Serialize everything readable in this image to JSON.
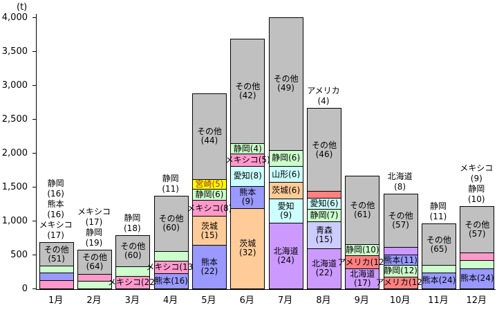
{
  "chart_data": {
    "type": "bar",
    "stacked": true,
    "title": "",
    "unit_label": "(t)",
    "xlabel": "",
    "ylabel": "(t)",
    "ylim": [
      0,
      4000
    ],
    "ytick_step": 500,
    "yticks": [
      "0",
      "500",
      "1,000",
      "1,500",
      "2,000",
      "2,500",
      "3,000",
      "3,500",
      "4,000"
    ],
    "grid": false,
    "legend": "none",
    "categories": [
      "1月",
      "2月",
      "3月",
      "4月",
      "5月",
      "6月",
      "7月",
      "8月",
      "9月",
      "10月",
      "11月",
      "12月"
    ],
    "region_colors": {
      "その他": "#c0c0c0",
      "静岡": "#ccffcc",
      "熊本": "#9999ff",
      "メキシコ": "#ff99cc",
      "宮崎": "#ffff00",
      "茨城": "#ffcc99",
      "愛知": "#ccffff",
      "山形": "#ccffff",
      "北海道": "#cc99ff",
      "青森": "#ccccff",
      "アメリカ": "#ff8080"
    },
    "months": [
      {
        "label": "1月",
        "total": 670,
        "segments": [
          {
            "region": "メキシコ",
            "key": "mexico",
            "pct": 17,
            "label": "outside"
          },
          {
            "region": "熊本",
            "key": "kumamoto",
            "pct": 16,
            "label": "outside"
          },
          {
            "region": "静岡",
            "key": "shizuoka",
            "pct": 16,
            "label": "outside"
          },
          {
            "region": "その他",
            "key": "others",
            "pct": 51,
            "label": "inside2"
          }
        ]
      },
      {
        "label": "2月",
        "total": 560,
        "segments": [
          {
            "region": "静岡",
            "key": "shizuoka",
            "pct": 19,
            "label": "outside"
          },
          {
            "region": "メキシコ",
            "key": "mexico",
            "pct": 17,
            "label": "outside"
          },
          {
            "region": "その他",
            "key": "others",
            "pct": 64,
            "label": "inside2"
          }
        ]
      },
      {
        "label": "3月",
        "total": 780,
        "segments": [
          {
            "region": "メキシコ",
            "key": "mexico",
            "pct": 22,
            "label": "inside1"
          },
          {
            "region": "静岡",
            "key": "shizuoka",
            "pct": 18,
            "label": "outside"
          },
          {
            "region": "その他",
            "key": "others",
            "pct": 60,
            "label": "inside2"
          }
        ]
      },
      {
        "label": "4月",
        "total": 1360,
        "segments": [
          {
            "region": "熊本",
            "key": "kumamoto",
            "pct": 16,
            "label": "inside1"
          },
          {
            "region": "メキシコ",
            "key": "mexico",
            "pct": 13,
            "label": "inside1"
          },
          {
            "region": "静岡",
            "key": "shizuoka",
            "pct": 11,
            "label": "outside"
          },
          {
            "region": "その他",
            "key": "others",
            "pct": 60,
            "label": "inside2"
          }
        ]
      },
      {
        "label": "5月",
        "total": 2870,
        "segments": [
          {
            "region": "熊本",
            "key": "kumamoto",
            "pct": 22,
            "label": "inside2"
          },
          {
            "region": "茨城",
            "key": "ibaraki",
            "pct": 15,
            "label": "inside2"
          },
          {
            "region": "メキシコ",
            "key": "mexico",
            "pct": 8,
            "label": "inside1"
          },
          {
            "region": "静岡",
            "key": "shizuoka",
            "pct": 6,
            "label": "inside1"
          },
          {
            "region": "宮崎",
            "key": "miyazaki",
            "pct": 5,
            "label": "inside1",
            "text_color": "#993300"
          },
          {
            "region": "その他",
            "key": "others",
            "pct": 44,
            "label": "inside2"
          }
        ]
      },
      {
        "label": "6月",
        "total": 3670,
        "segments": [
          {
            "region": "茨城",
            "key": "ibaraki",
            "pct": 32,
            "label": "inside2"
          },
          {
            "region": "熊本",
            "key": "kumamoto",
            "pct": 9,
            "label": "inside2"
          },
          {
            "region": "愛知",
            "key": "aichi",
            "pct": 8,
            "label": "inside1"
          },
          {
            "region": "メキシコ",
            "key": "mexico",
            "pct": 5,
            "label": "inside1"
          },
          {
            "region": "静岡",
            "key": "shizuoka",
            "pct": 4,
            "label": "inside1"
          },
          {
            "region": "その他",
            "key": "others",
            "pct": 42,
            "label": "inside2"
          }
        ]
      },
      {
        "label": "7月",
        "total": 3990,
        "segments": [
          {
            "region": "北海道",
            "key": "hokkaido",
            "pct": 24,
            "label": "inside2"
          },
          {
            "region": "愛知",
            "key": "aichi",
            "pct": 9,
            "label": "inside2"
          },
          {
            "region": "茨城",
            "key": "ibaraki",
            "pct": 6,
            "label": "inside1"
          },
          {
            "region": "山形",
            "key": "yamagata",
            "pct": 6,
            "label": "inside1"
          },
          {
            "region": "静岡",
            "key": "shizuoka",
            "pct": 6,
            "label": "inside1"
          },
          {
            "region": "その他",
            "key": "others",
            "pct": 49,
            "label": "inside2"
          }
        ]
      },
      {
        "label": "8月",
        "total": 2650,
        "segments": [
          {
            "region": "北海道",
            "key": "hokkaido",
            "pct": 22,
            "label": "inside2"
          },
          {
            "region": "青森",
            "key": "aomori",
            "pct": 15,
            "label": "inside2"
          },
          {
            "region": "静岡",
            "key": "shizuoka",
            "pct": 7,
            "label": "inside1"
          },
          {
            "region": "愛知",
            "key": "aichi",
            "pct": 6,
            "label": "inside1"
          },
          {
            "region": "アメリカ",
            "key": "america",
            "pct": 4,
            "label": "outside"
          },
          {
            "region": "その他",
            "key": "others",
            "pct": 46,
            "label": "inside2"
          }
        ]
      },
      {
        "label": "9月",
        "total": 1650,
        "segments": [
          {
            "region": "北海道",
            "key": "hokkaido",
            "pct": 17,
            "label": "inside2"
          },
          {
            "region": "アメリカ",
            "key": "america",
            "pct": 12,
            "label": "inside1"
          },
          {
            "region": "静岡",
            "key": "shizuoka",
            "pct": 10,
            "label": "inside1"
          },
          {
            "region": "その他",
            "key": "others",
            "pct": 61,
            "label": "inside2"
          }
        ]
      },
      {
        "label": "10月",
        "total": 1390,
        "segments": [
          {
            "region": "アメリカ",
            "key": "america",
            "pct": 12,
            "label": "inside1"
          },
          {
            "region": "静岡",
            "key": "shizuoka",
            "pct": 12,
            "label": "inside1"
          },
          {
            "region": "熊本",
            "key": "kumamoto",
            "pct": 11,
            "label": "inside1"
          },
          {
            "region": "北海道",
            "key": "hokkaido",
            "pct": 8,
            "label": "outside"
          },
          {
            "region": "その他",
            "key": "others",
            "pct": 57,
            "label": "inside2"
          }
        ]
      },
      {
        "label": "11月",
        "total": 950,
        "segments": [
          {
            "region": "熊本",
            "key": "kumamoto",
            "pct": 24,
            "label": "inside1"
          },
          {
            "region": "静岡",
            "key": "shizuoka",
            "pct": 11,
            "label": "outside"
          },
          {
            "region": "その他",
            "key": "others",
            "pct": 65,
            "label": "inside2"
          }
        ]
      },
      {
        "label": "12月",
        "total": 1200,
        "segments": [
          {
            "region": "熊本",
            "key": "kumamoto",
            "pct": 24,
            "label": "inside1"
          },
          {
            "region": "静岡",
            "key": "shizuoka",
            "pct": 10,
            "label": "outside"
          },
          {
            "region": "メキシコ",
            "key": "mexico",
            "pct": 9,
            "label": "outside"
          },
          {
            "region": "その他",
            "key": "others",
            "pct": 57,
            "label": "inside2"
          }
        ]
      }
    ]
  }
}
